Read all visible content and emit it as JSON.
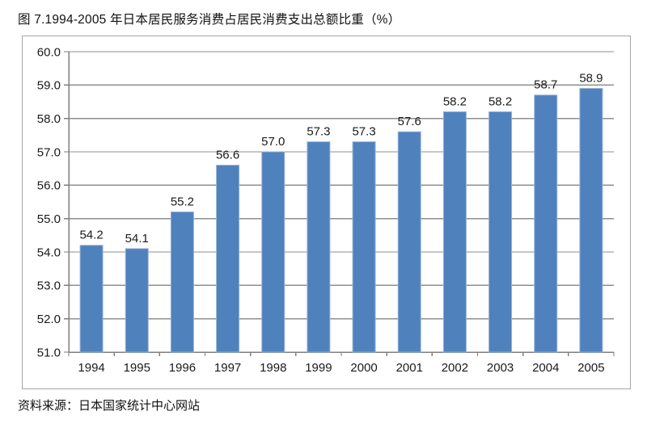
{
  "title": "图 7.1994-2005 年日本居民服务消费占居民消费支出总额比重（%）",
  "source": "资料来源：日本国家统计中心网站",
  "chart_data": {
    "type": "bar",
    "title": "图 7.1994-2005 年日本居民服务消费占居民消费支出总额比重（%）",
    "categories": [
      "1994",
      "1995",
      "1996",
      "1997",
      "1998",
      "1999",
      "2000",
      "2001",
      "2002",
      "2003",
      "2004",
      "2005"
    ],
    "values": [
      54.2,
      54.1,
      55.2,
      56.6,
      57.0,
      57.3,
      57.3,
      57.6,
      58.2,
      58.2,
      58.7,
      58.9
    ],
    "value_labels": [
      "54.2",
      "54.1",
      "55.2",
      "56.6",
      "57.0",
      "57.3",
      "57.3",
      "57.6",
      "58.2",
      "58.2",
      "58.7",
      "58.9"
    ],
    "xlabel": "",
    "ylabel": "",
    "ylim": [
      51.0,
      60.0
    ],
    "y_tick_step": 1.0,
    "y_tick_labels": [
      "51.0",
      "52.0",
      "53.0",
      "54.0",
      "55.0",
      "56.0",
      "57.0",
      "58.0",
      "59.0",
      "60.0"
    ],
    "grid": true,
    "legend_position": "none",
    "colors": {
      "bar_fill": "#4f81bd",
      "bar_border": "#95b3d7",
      "gridline": "#8f8f8f",
      "axis_line": "#7f7f7f",
      "frame_border": "#a6a6a6",
      "text": "#1a1a1a"
    }
  }
}
